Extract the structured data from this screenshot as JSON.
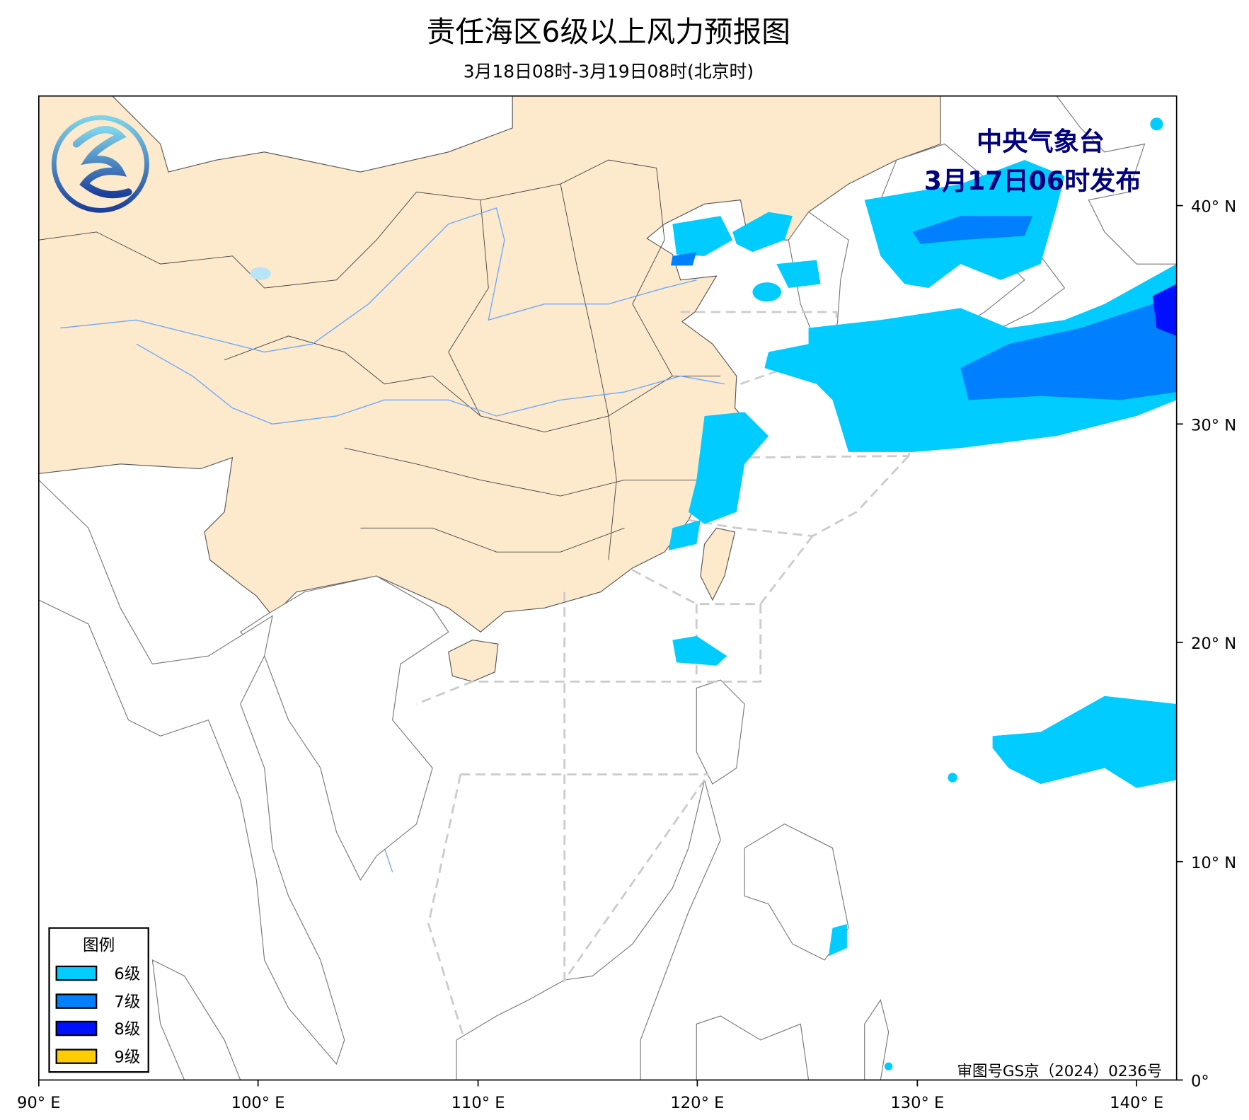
{
  "title": "责任海区6级以上风力预报图",
  "subtitle": "3月18日08时-3月19日08时(北京时)",
  "publisher": {
    "name": "中央气象台",
    "issued": "3月17日06时发布"
  },
  "approval_number": "审图号GS京（2024）0236号",
  "axes": {
    "x_ticks": [
      "90° E",
      "100° E",
      "110° E",
      "120° E",
      "130° E",
      "140° E"
    ],
    "y_ticks": [
      "0°",
      "10° N",
      "20° N",
      "30° N",
      "40° N"
    ]
  },
  "legend": {
    "title": "图例",
    "items": [
      {
        "label": "6级",
        "color": "#00ccff"
      },
      {
        "label": "7级",
        "color": "#0080ff"
      },
      {
        "label": "8级",
        "color": "#0010ff"
      },
      {
        "label": "9级",
        "color": "#ffcc00"
      }
    ]
  },
  "colors": {
    "china_land": "#fde9cc",
    "sea_zone_boundary": "#cccccc",
    "publisher_text": "#000080",
    "river": "#6aa9ff"
  }
}
